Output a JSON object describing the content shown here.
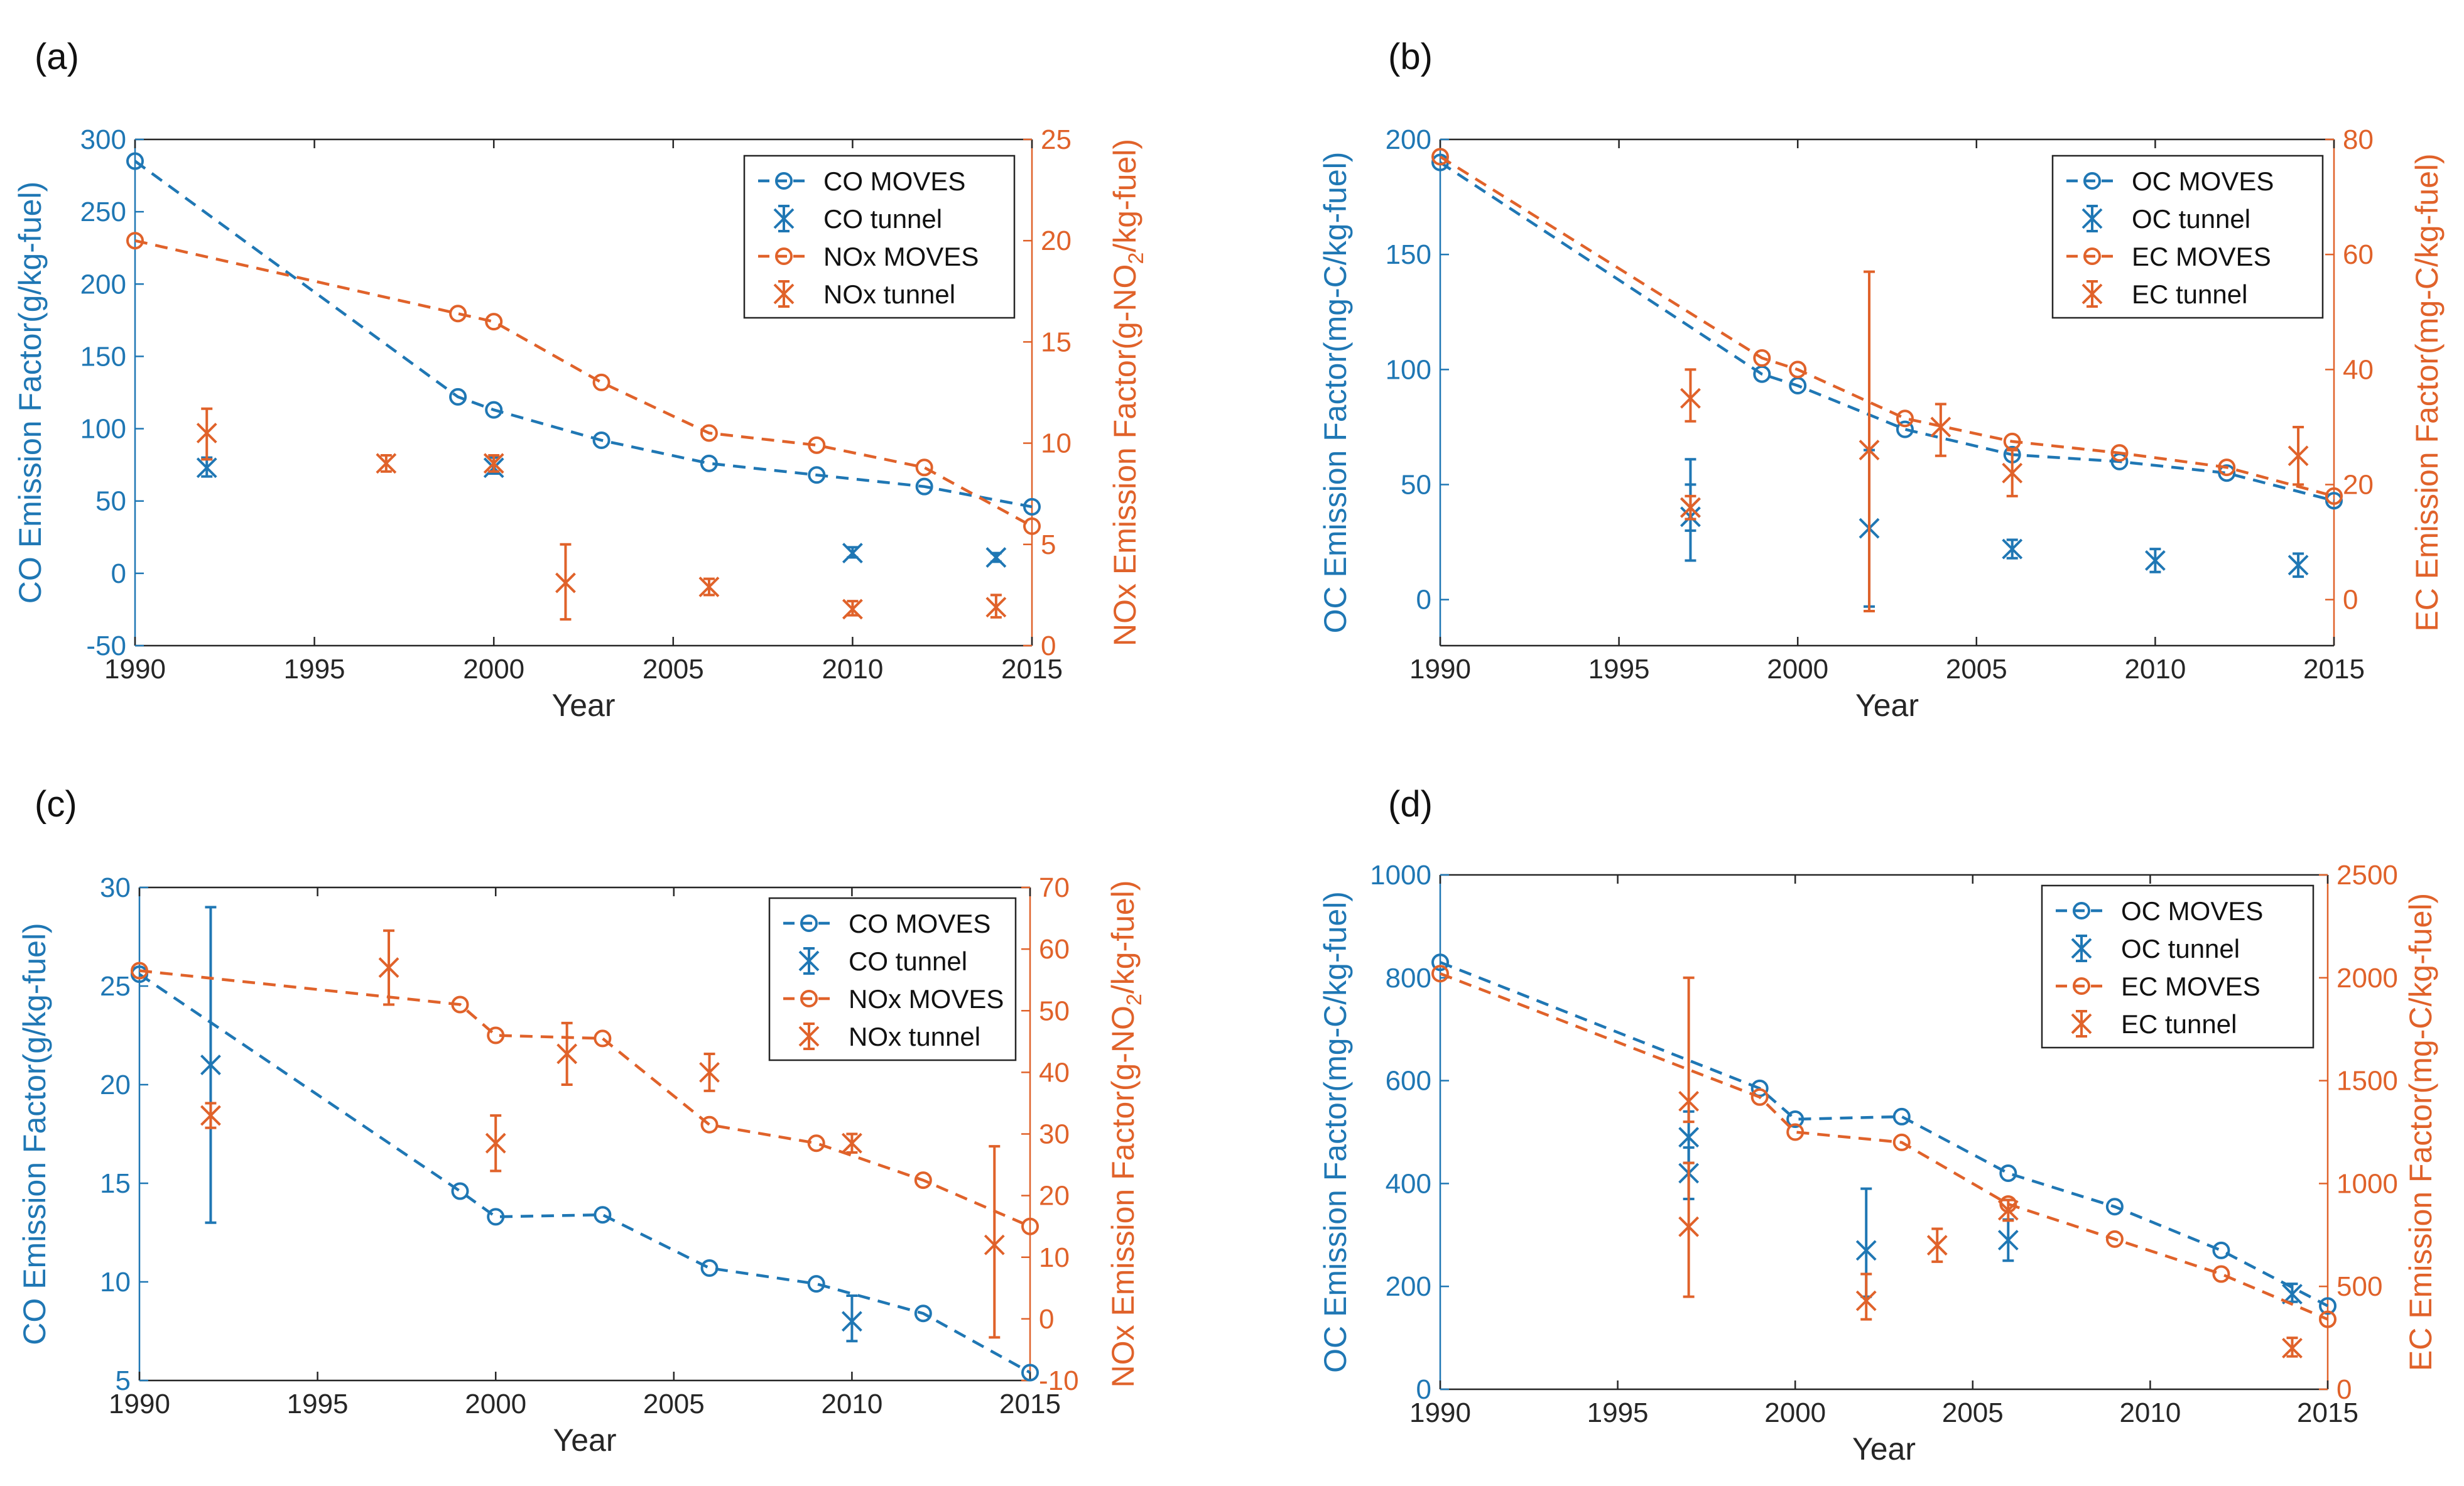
{
  "colors": {
    "blue": "#1f77b4",
    "orange": "#e0622a",
    "axis": "#262626",
    "box": "#262626"
  },
  "chart_data": [
    {
      "type": "line",
      "panel_label": "(a)",
      "xlabel": "Year",
      "ylabel_left": "CO Emission Factor(g/kg-fuel)",
      "ylabel_right": "NOx Emission Factor(g-NO2/kg-fuel)",
      "xlim": [
        1990,
        2015
      ],
      "ylim_left": [
        -50,
        300
      ],
      "ylim_right": [
        0,
        25
      ],
      "xticks": [
        "1990",
        "1995",
        "2000",
        "2005",
        "2010",
        "2015"
      ],
      "yticks_left": [
        "-50",
        "0",
        "50",
        "100",
        "150",
        "200",
        "250",
        "300"
      ],
      "yticks_right": [
        "0",
        "5",
        "10",
        "15",
        "20",
        "25"
      ],
      "legend_position": "top-right",
      "series": [
        {
          "name": "CO MOVES",
          "axis": "left",
          "kind": "moves",
          "color": "blue",
          "x": [
            1990,
            1999,
            2000,
            2003,
            2006,
            2009,
            2012,
            2015
          ],
          "y": [
            285,
            122,
            113,
            92,
            76,
            68,
            60,
            46
          ]
        },
        {
          "name": "CO tunnel",
          "axis": "left",
          "kind": "tunnel",
          "color": "blue",
          "x": [
            1992,
            2000,
            2010,
            2014
          ],
          "y": [
            73,
            73,
            14,
            11
          ],
          "lo": [
            67,
            69,
            11,
            8
          ],
          "hi": [
            80,
            80,
            18,
            14
          ]
        },
        {
          "name": "NOx MOVES",
          "axis": "right",
          "kind": "moves",
          "color": "orange",
          "x": [
            1990,
            1999,
            2000,
            2003,
            2006,
            2009,
            2012,
            2015
          ],
          "y": [
            20,
            16.4,
            16.0,
            13.0,
            10.5,
            9.9,
            8.8,
            5.9
          ]
        },
        {
          "name": "NOx tunnel",
          "axis": "right",
          "kind": "tunnel",
          "color": "orange",
          "x": [
            1992,
            1997,
            2000,
            2002,
            2006,
            2010,
            2014
          ],
          "y": [
            10.5,
            9.0,
            9.0,
            3.1,
            2.9,
            1.8,
            1.9
          ],
          "lo": [
            9.2,
            8.6,
            8.6,
            1.3,
            2.5,
            1.5,
            1.4
          ],
          "hi": [
            11.7,
            9.4,
            9.4,
            5.0,
            3.3,
            2.2,
            2.5
          ]
        }
      ]
    },
    {
      "type": "line",
      "panel_label": "(b)",
      "xlabel": "Year",
      "ylabel_left": "OC Emission Factor(mg-C/kg-fuel)",
      "ylabel_right": "EC Emission Factor(mg-C/kg-fuel)",
      "xlim": [
        1990,
        2015
      ],
      "ylim_left": [
        -20,
        200
      ],
      "ylim_right": [
        -8,
        80
      ],
      "xticks": [
        "1990",
        "1995",
        "2000",
        "2005",
        "2010",
        "2015"
      ],
      "yticks_left": [
        "0",
        "50",
        "100",
        "150",
        "200"
      ],
      "yticks_right": [
        "0",
        "20",
        "40",
        "60",
        "80"
      ],
      "legend_position": "top-right",
      "series": [
        {
          "name": "OC MOVES",
          "axis": "left",
          "kind": "moves",
          "color": "blue",
          "x": [
            1990,
            1999,
            2000,
            2003,
            2006,
            2009,
            2012,
            2015
          ],
          "y": [
            190,
            98,
            93,
            74,
            63,
            60,
            55,
            43
          ]
        },
        {
          "name": "OC tunnel",
          "axis": "left",
          "kind": "tunnel",
          "color": "blue",
          "x": [
            1997,
            1997,
            2002,
            2006,
            2010,
            2014
          ],
          "y": [
            36,
            40,
            31,
            22,
            17,
            15
          ],
          "lo": [
            17,
            30,
            -3,
            18,
            12,
            10
          ],
          "hi": [
            61,
            50,
            65,
            26,
            22,
            20
          ]
        },
        {
          "name": "EC MOVES",
          "axis": "right",
          "kind": "moves",
          "color": "orange",
          "x": [
            1990,
            1999,
            2000,
            2003,
            2006,
            2009,
            2012,
            2015
          ],
          "y": [
            77,
            42,
            40,
            31.5,
            27.5,
            25.5,
            23,
            18
          ]
        },
        {
          "name": "EC tunnel",
          "axis": "right",
          "kind": "tunnel",
          "color": "orange",
          "x": [
            1997,
            1997,
            2002,
            2004,
            2006,
            2014
          ],
          "y": [
            35,
            16,
            26,
            30,
            22,
            25
          ],
          "lo": [
            31,
            14,
            -2,
            25,
            18,
            20
          ],
          "hi": [
            40,
            18,
            57,
            34,
            26,
            30
          ]
        }
      ]
    },
    {
      "type": "line",
      "panel_label": "(c)",
      "xlabel": "Year",
      "ylabel_left": "CO Emission Factor(g/kg-fuel)",
      "ylabel_right": "NOx Emission Factor(g-NO2/kg-fuel)",
      "xlim": [
        1990,
        2015
      ],
      "ylim_left": [
        5,
        30
      ],
      "ylim_right": [
        -10,
        70
      ],
      "xticks": [
        "1990",
        "1995",
        "2000",
        "2005",
        "2010",
        "2015"
      ],
      "yticks_left": [
        "5",
        "10",
        "15",
        "20",
        "25",
        "30"
      ],
      "yticks_right": [
        "-10",
        "0",
        "10",
        "20",
        "30",
        "40",
        "50",
        "60",
        "70"
      ],
      "legend_position": "top-right",
      "series": [
        {
          "name": "CO MOVES",
          "axis": "left",
          "kind": "moves",
          "color": "blue",
          "x": [
            1990,
            1999,
            2000,
            2003,
            2006,
            2009,
            2012,
            2015
          ],
          "y": [
            25.6,
            14.6,
            13.3,
            13.4,
            10.7,
            9.9,
            8.4,
            5.4
          ]
        },
        {
          "name": "CO tunnel",
          "axis": "left",
          "kind": "tunnel",
          "color": "blue",
          "x": [
            1992,
            2010
          ],
          "y": [
            21,
            8
          ],
          "lo": [
            13,
            7
          ],
          "hi": [
            29,
            9.3
          ]
        },
        {
          "name": "NOx MOVES",
          "axis": "right",
          "kind": "moves",
          "color": "orange",
          "x": [
            1990,
            1999,
            2000,
            2003,
            2006,
            2009,
            2012,
            2015
          ],
          "y": [
            56.5,
            51,
            46,
            45.5,
            31.5,
            28.5,
            22.5,
            15
          ]
        },
        {
          "name": "NOx tunnel",
          "axis": "right",
          "kind": "tunnel",
          "color": "orange",
          "x": [
            1992,
            1997,
            2000,
            2002,
            2006,
            2010,
            2014
          ],
          "y": [
            33,
            57,
            28.5,
            43,
            40,
            28.5,
            12
          ],
          "lo": [
            31,
            51,
            24,
            38,
            37,
            27,
            -3
          ],
          "hi": [
            35,
            63,
            33,
            48,
            43,
            30,
            28
          ]
        }
      ]
    },
    {
      "type": "line",
      "panel_label": "(d)",
      "xlabel": "Year",
      "ylabel_left": "OC Emission Factor(mg-C/kg-fuel)",
      "ylabel_right": "EC Emission Factor(mg-C/kg-fuel)",
      "xlim": [
        1990,
        2015
      ],
      "ylim_left": [
        0,
        1000
      ],
      "ylim_right": [
        0,
        2500
      ],
      "xticks": [
        "1990",
        "1995",
        "2000",
        "2005",
        "2010",
        "2015"
      ],
      "yticks_left": [
        "0",
        "200",
        "400",
        "600",
        "800",
        "1000"
      ],
      "yticks_right": [
        "0",
        "500",
        "1000",
        "1500",
        "2000",
        "2500"
      ],
      "legend_position": "top-right",
      "series": [
        {
          "name": "OC MOVES",
          "axis": "left",
          "kind": "moves",
          "color": "blue",
          "x": [
            1990,
            1999,
            2000,
            2003,
            2006,
            2009,
            2012,
            2015
          ],
          "y": [
            830,
            585,
            525,
            530,
            420,
            355,
            270,
            162
          ]
        },
        {
          "name": "OC tunnel",
          "axis": "left",
          "kind": "tunnel",
          "color": "blue",
          "x": [
            1997,
            1997,
            2002,
            2006,
            2014
          ],
          "y": [
            490,
            420,
            270,
            290,
            185
          ],
          "lo": [
            440,
            370,
            180,
            250,
            170
          ],
          "hi": [
            540,
            470,
            390,
            330,
            205
          ]
        },
        {
          "name": "EC MOVES",
          "axis": "right",
          "kind": "moves",
          "color": "orange",
          "x": [
            1990,
            1999,
            2000,
            2003,
            2006,
            2009,
            2012,
            2015
          ],
          "y": [
            2020,
            1420,
            1250,
            1200,
            900,
            730,
            560,
            340
          ]
        },
        {
          "name": "EC tunnel",
          "axis": "right",
          "kind": "tunnel",
          "color": "orange",
          "x": [
            1997,
            1997,
            2002,
            2004,
            2006,
            2014
          ],
          "y": [
            1400,
            790,
            430,
            700,
            870,
            200
          ],
          "lo": [
            1300,
            450,
            340,
            620,
            820,
            160
          ],
          "hi": [
            2000,
            1100,
            560,
            780,
            920,
            250
          ]
        }
      ]
    }
  ]
}
